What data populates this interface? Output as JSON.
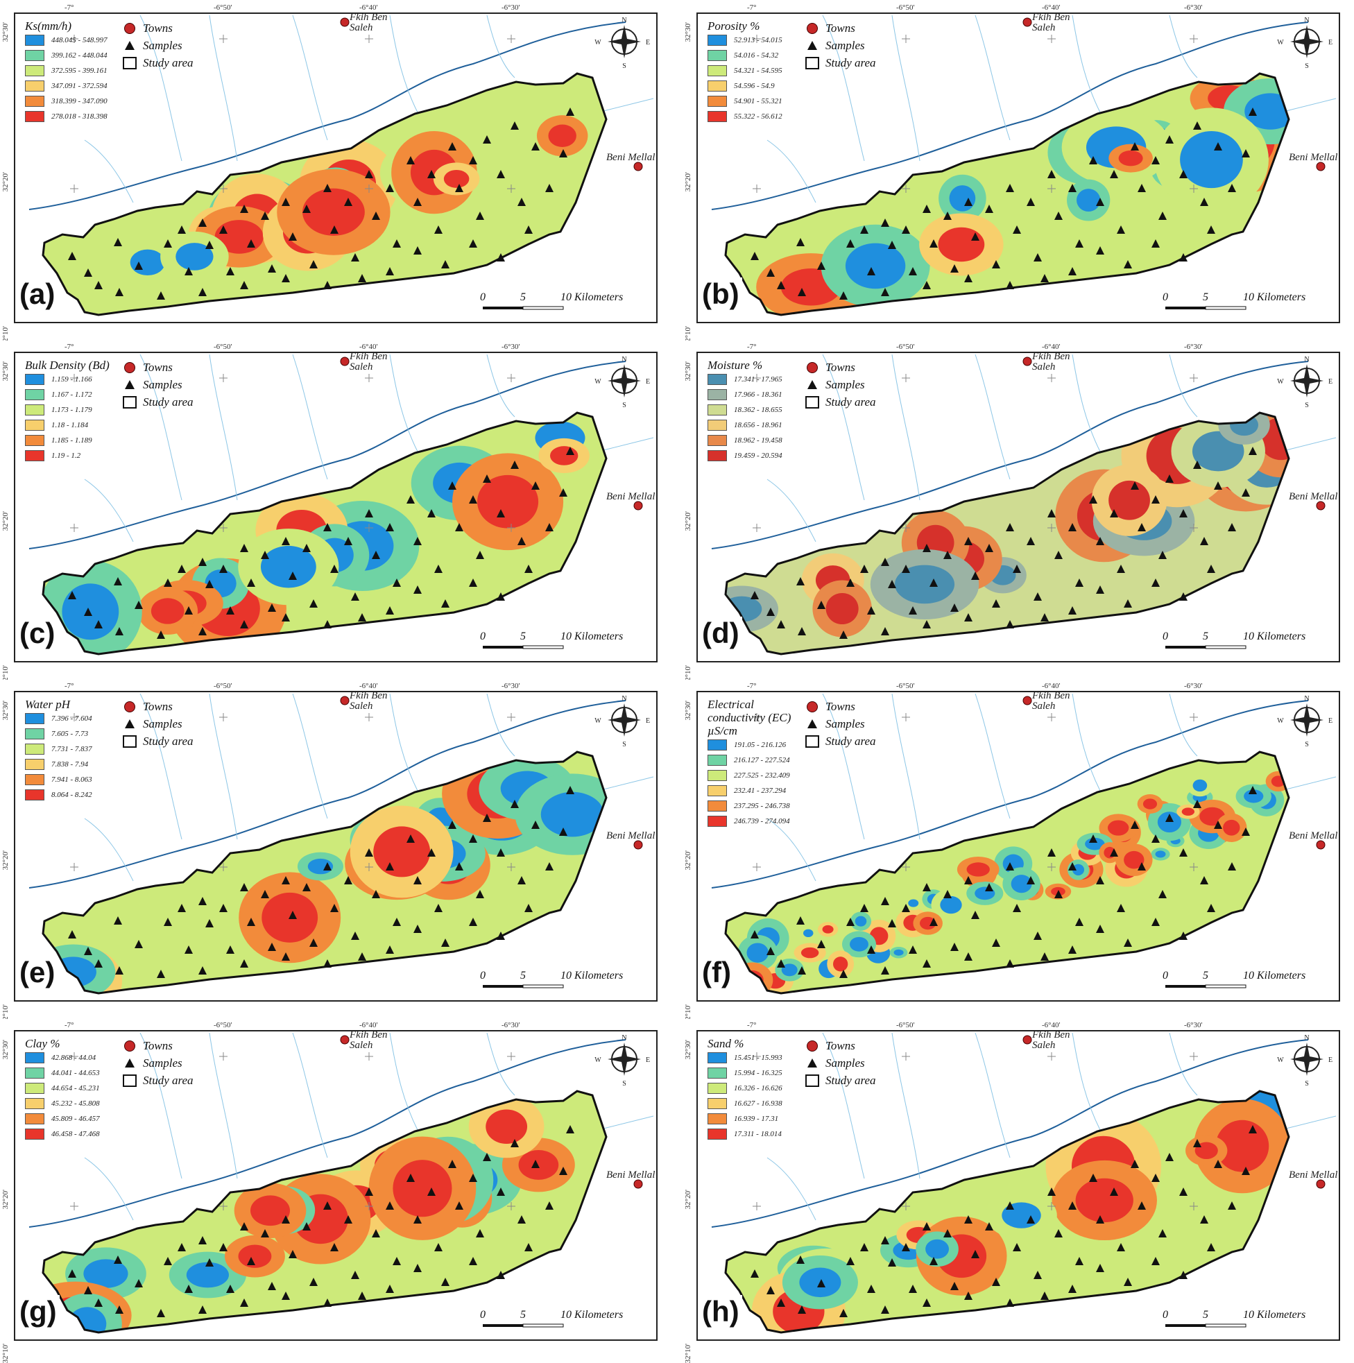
{
  "legend_keys": {
    "towns": "Towns",
    "samples": "Samples",
    "study_area": "Study area"
  },
  "towns": {
    "fkih_ben_saleh": "Fkih Ben Saleh",
    "beni_mellal": "Beni Mellal"
  },
  "scale": {
    "zero": "0",
    "five": "5",
    "ten": "10 Kilometers"
  },
  "coords": {
    "lon": [
      "-7°",
      "-6°50'",
      "-6°40'",
      "-6°30'"
    ],
    "lat": [
      "32°30'",
      "32°20'",
      "32°10'"
    ]
  },
  "compass": {
    "n": "N",
    "s": "S",
    "e": "E",
    "w": "W"
  },
  "palettes": {
    "standard": [
      "#1f8fde",
      "#6fd3a4",
      "#cdea7a",
      "#f7cf6c",
      "#f28b3b",
      "#e8352b"
    ],
    "moisture": [
      "#4a8fb0",
      "#9bb3a4",
      "#cfdc92",
      "#f2cc78",
      "#e8894a",
      "#d6312b"
    ]
  },
  "panels": [
    {
      "letter": "(a)",
      "title": "Ks(mm/h)",
      "palette": "standard",
      "ranges": [
        "448.045 - 548.997",
        "399.162 - 448.044",
        "372.595 - 399.161",
        "347.091 - 372.594",
        "318.399 - 347.090",
        "278.018 - 318.398"
      ]
    },
    {
      "letter": "(b)",
      "title": "Porosity %",
      "palette": "standard",
      "ranges": [
        "52.913 - 54.015",
        "54.016 - 54.32",
        "54.321 - 54.595",
        "54.596 - 54.9",
        "54.901 - 55.321",
        "55.322 - 56.612"
      ]
    },
    {
      "letter": "(c)",
      "title": "Bulk Density (Bd)",
      "palette": "standard",
      "ranges": [
        "1.159 - 1.166",
        "1.167 - 1.172",
        "1.173 - 1.179",
        "1.18 - 1.184",
        "1.185 - 1.189",
        "1.19 - 1.2"
      ]
    },
    {
      "letter": "(d)",
      "title": "Moisture %",
      "palette": "moisture",
      "ranges": [
        "17.341 - 17.965",
        "17.966 - 18.361",
        "18.362 - 18.655",
        "18.656 - 18.961",
        "18.962 - 19.458",
        "19.459 - 20.594"
      ]
    },
    {
      "letter": "(e)",
      "title": "Water pH",
      "palette": "standard",
      "ranges": [
        "7.396 - 7.604",
        "7.605 - 7.73",
        "7.731 - 7.837",
        "7.838 - 7.94",
        "7.941 - 8.063",
        "8.064 - 8.242"
      ]
    },
    {
      "letter": "(f)",
      "title": "Electrical conductivity (EC) µS/cm",
      "palette": "standard",
      "ranges": [
        "191.05 - 216.126",
        "216.127 - 227.524",
        "227.525 - 232.409",
        "232.41 - 237.294",
        "237.295 - 246.738",
        "246.739 - 274.094"
      ]
    },
    {
      "letter": "(g)",
      "title": "Clay %",
      "palette": "standard",
      "ranges": [
        "42.868 - 44.04",
        "44.041 - 44.653",
        "44.654 - 45.231",
        "45.232 - 45.808",
        "45.809 - 46.457",
        "46.458 - 47.468"
      ]
    },
    {
      "letter": "(h)",
      "title": "Sand %",
      "palette": "standard",
      "ranges": [
        "15.451 - 15.993",
        "15.994 - 16.325",
        "16.326 - 16.626",
        "16.627 - 16.938",
        "16.939 - 17.31",
        "17.311 - 18.014"
      ]
    }
  ]
}
